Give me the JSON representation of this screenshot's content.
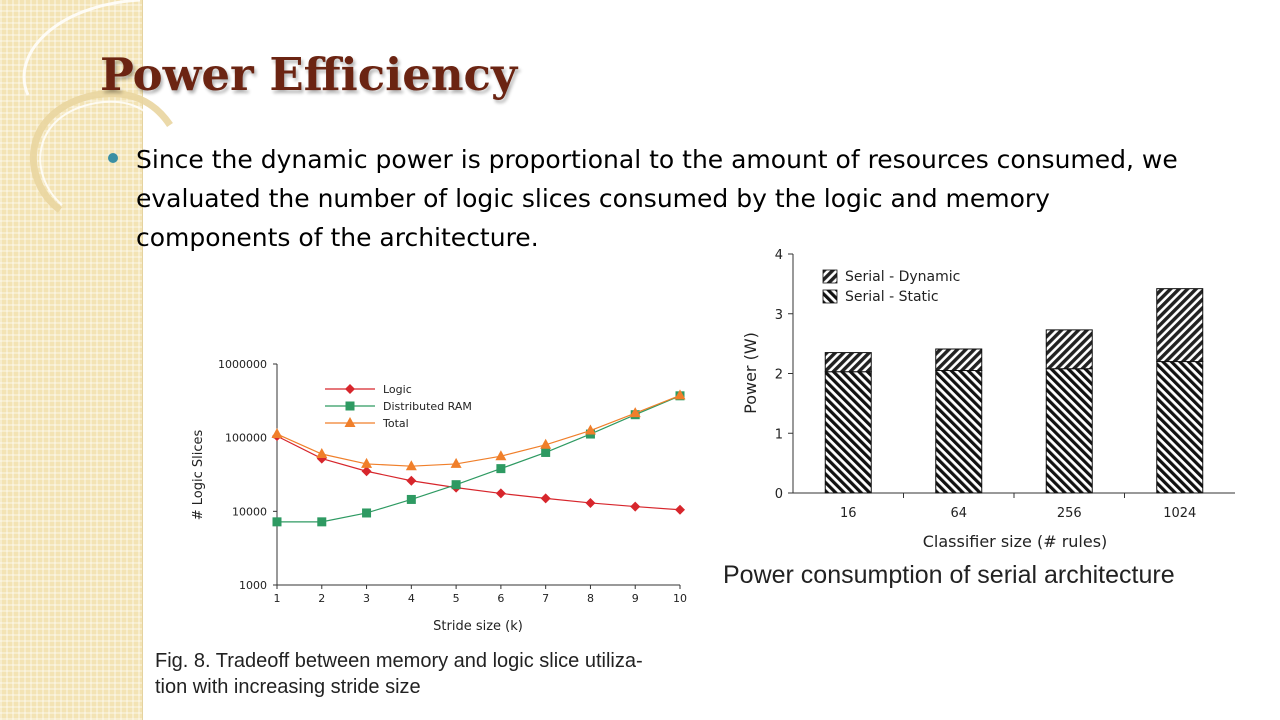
{
  "slide": {
    "title": "Power Efficiency",
    "bullet": "Since the dynamic power is proportional to the amount of resources consumed, we evaluated the number of logic slices consumed by the logic and memory components of the architecture.",
    "caption_left_line1": "Fig. 8.  Tradeoff between memory and logic slice utiliza-",
    "caption_left_line2": "tion with increasing stride size",
    "caption_right": "Power consumption of serial architecture"
  },
  "colors": {
    "title": "#6b2412",
    "bullet": "#3a8fa3",
    "logic": "#d7262c",
    "distributed_ram": "#2e9a62",
    "total": "#f07f2a"
  },
  "chart_data": [
    {
      "type": "line",
      "xlabel": "Stride size (k)",
      "ylabel": "# Logic Slices",
      "yscale": "log",
      "ylim": [
        1000,
        1000000
      ],
      "xlim": [
        1,
        10
      ],
      "x": [
        1,
        2,
        3,
        4,
        5,
        6,
        7,
        8,
        9,
        10
      ],
      "x_ticks": [
        "1",
        "2",
        "3",
        "4",
        "5",
        "6",
        "7",
        "8",
        "9",
        "10"
      ],
      "y_ticks": [
        "1000",
        "10000",
        "100000",
        "1000000"
      ],
      "legend_position": "top-left",
      "series": [
        {
          "name": "Logic",
          "marker": "diamond",
          "values": [
            105000,
            52000,
            35000,
            26000,
            21000,
            17500,
            15000,
            13000,
            11600,
            10500
          ]
        },
        {
          "name": "Distributed RAM",
          "marker": "square",
          "values": [
            7200,
            7200,
            9500,
            14500,
            23000,
            38000,
            63000,
            112000,
            205000,
            370000
          ]
        },
        {
          "name": "Total",
          "marker": "triangle",
          "values": [
            112000,
            60000,
            44000,
            41000,
            44000,
            56000,
            80000,
            125000,
            215000,
            375000
          ]
        }
      ]
    },
    {
      "type": "bar",
      "stacked": true,
      "xlabel": "Classifier size (# rules)",
      "ylabel": "Power (W)",
      "categories": [
        "16",
        "64",
        "256",
        "1024"
      ],
      "ylim": [
        0,
        4
      ],
      "y_ticks": [
        "0",
        "1",
        "2",
        "3",
        "4"
      ],
      "legend_position": "top-left",
      "series": [
        {
          "name": "Serial - Static",
          "values": [
            2.03,
            2.05,
            2.08,
            2.2
          ]
        },
        {
          "name": "Serial - Dynamic",
          "values": [
            0.32,
            0.36,
            0.65,
            1.22
          ]
        }
      ]
    }
  ]
}
